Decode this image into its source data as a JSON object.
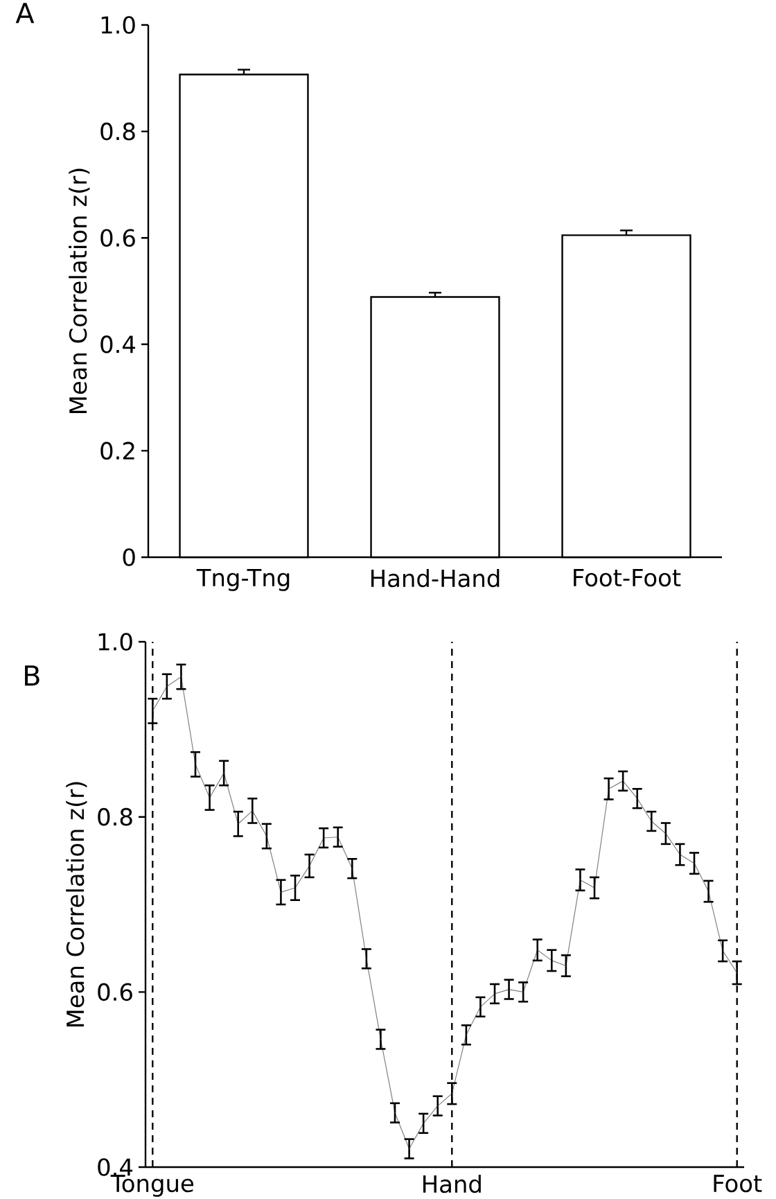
{
  "chart_data": [
    {
      "type": "bar",
      "title": "A",
      "ylabel": "Mean Correlation z(r)",
      "categories": [
        "Tng-Tng",
        "Hand-Hand",
        "Foot-Foot"
      ],
      "values": [
        0.907,
        0.489,
        0.605
      ],
      "errors": [
        0.009,
        0.008,
        0.009
      ],
      "color": "#ffffff",
      "ylim": [
        0,
        1.0
      ],
      "yticks": [
        0,
        0.2,
        0.4,
        0.6,
        0.8,
        {
          "value": 1.0,
          "label": "1.0"
        }
      ]
    },
    {
      "type": "line",
      "title": "B",
      "ylabel": "Mean Correlation z(r)",
      "categories": [
        "Tongue",
        null,
        null,
        null,
        null,
        null,
        null,
        null,
        null,
        null,
        null,
        null,
        null,
        null,
        null,
        null,
        null,
        null,
        null,
        null,
        null,
        "Hand",
        null,
        null,
        null,
        null,
        null,
        null,
        null,
        null,
        null,
        null,
        null,
        null,
        null,
        null,
        null,
        null,
        null,
        null,
        null,
        "Foot"
      ],
      "values": [
        0.921,
        0.949,
        0.96,
        0.86,
        0.822,
        0.85,
        0.792,
        0.807,
        0.778,
        0.714,
        0.719,
        0.744,
        0.776,
        0.777,
        0.741,
        0.638,
        0.546,
        0.462,
        0.421,
        0.45,
        0.47,
        0.484,
        0.551,
        0.583,
        0.598,
        0.603,
        0.6,
        0.648,
        0.636,
        0.63,
        0.728,
        0.719,
        0.832,
        0.841,
        0.821,
        0.795,
        0.781,
        0.757,
        0.747,
        0.715,
        0.647,
        0.622
      ],
      "errors": [
        0.014,
        0.014,
        0.014,
        0.014,
        0.014,
        0.014,
        0.014,
        0.014,
        0.014,
        0.014,
        0.014,
        0.013,
        0.011,
        0.011,
        0.011,
        0.011,
        0.011,
        0.011,
        0.011,
        0.011,
        0.011,
        0.012,
        0.011,
        0.011,
        0.011,
        0.011,
        0.011,
        0.012,
        0.012,
        0.012,
        0.012,
        0.012,
        0.012,
        0.011,
        0.011,
        0.011,
        0.012,
        0.012,
        0.012,
        0.012,
        0.012,
        0.013
      ],
      "color": "#808080",
      "ylim": [
        0.4,
        1.0
      ],
      "yticks": [
        0.4,
        0.6,
        0.8,
        {
          "value": 1.0,
          "label": "1.0"
        }
      ],
      "ref_lines": [
        {
          "axis": "x",
          "value": "Tongue",
          "line_style": "dashed"
        },
        {
          "axis": "x",
          "value": "Hand",
          "line_style": "dashed"
        },
        {
          "axis": "x",
          "value": "Foot",
          "line_style": "dashed"
        }
      ]
    }
  ]
}
